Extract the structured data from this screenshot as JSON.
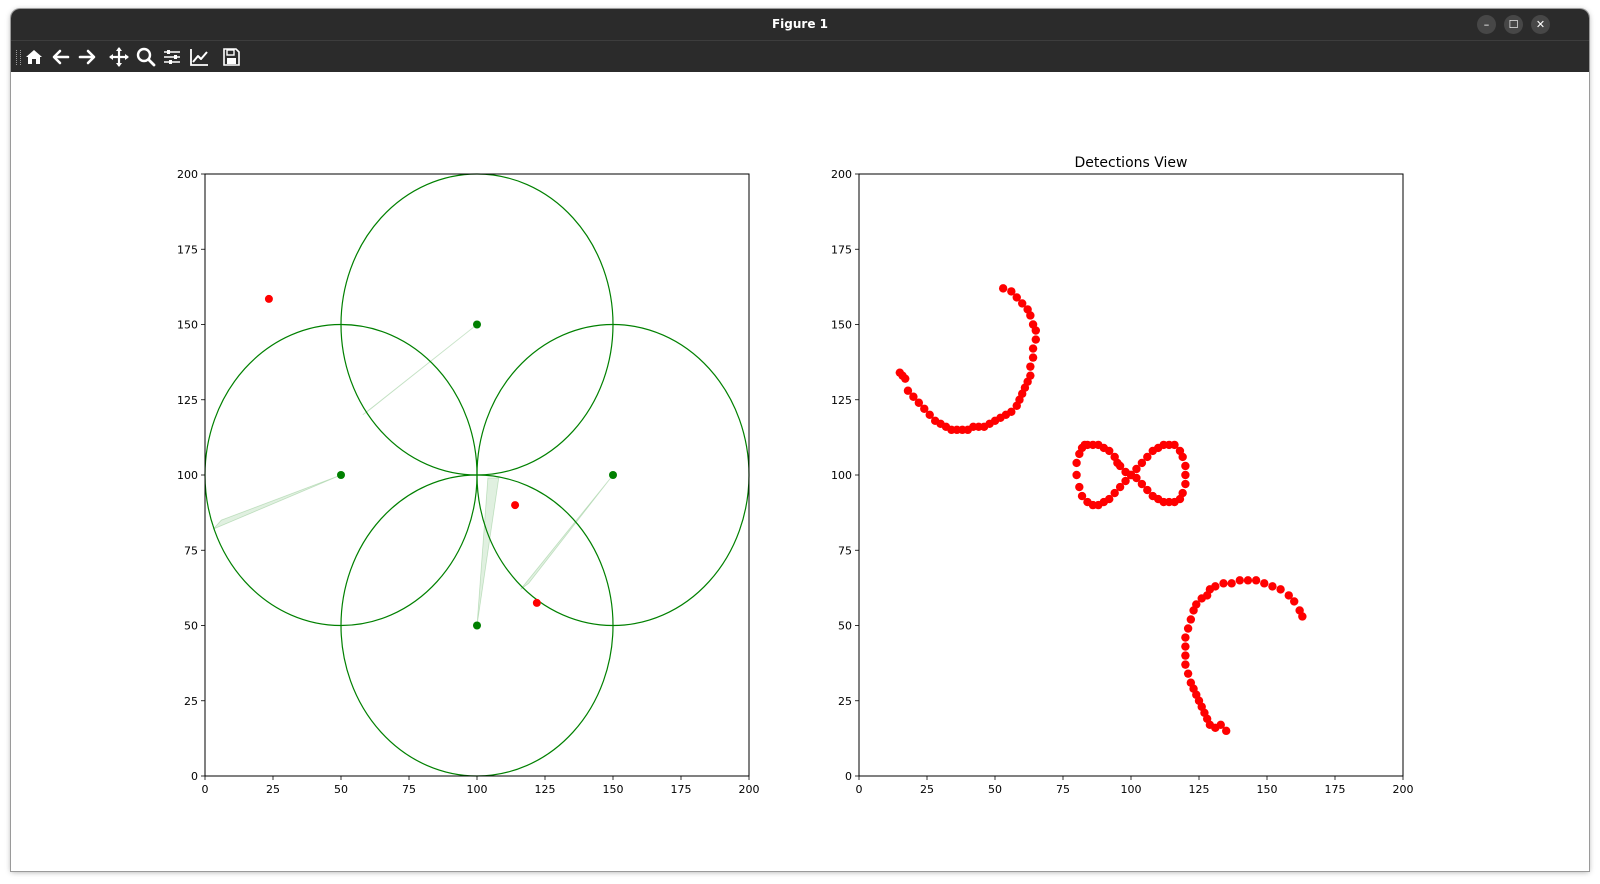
{
  "window": {
    "title": "Figure 1",
    "controls": {
      "minimize": "–",
      "maximize": "☐",
      "close": "✕"
    }
  },
  "toolbar": {
    "buttons": [
      {
        "name": "home-icon",
        "label": "Home"
      },
      {
        "name": "back-icon",
        "label": "Back"
      },
      {
        "name": "forward-icon",
        "label": "Forward"
      },
      {
        "name": "pan-icon",
        "label": "Pan"
      },
      {
        "name": "zoom-icon",
        "label": "Zoom"
      },
      {
        "name": "subplots-icon",
        "label": "Subplots"
      },
      {
        "name": "customize-icon",
        "label": "Customize"
      },
      {
        "name": "save-icon",
        "label": "Save"
      }
    ]
  },
  "chart_data": [
    {
      "type": "scatter",
      "title": "",
      "xlabel": "",
      "ylabel": "",
      "xlim": [
        0,
        200
      ],
      "ylim": [
        0,
        200
      ],
      "xticks": [
        0,
        25,
        50,
        75,
        100,
        125,
        150,
        175,
        200
      ],
      "yticks": [
        0,
        25,
        50,
        75,
        100,
        125,
        150,
        175,
        200
      ],
      "grid": false,
      "color_sensor": "#008000",
      "color_target": "#ff0000",
      "sensors": [
        {
          "x": 50,
          "y": 100,
          "range": 50,
          "beam_to": [
            [
              3,
              82
            ],
            [
              6,
              85
            ]
          ]
        },
        {
          "x": 100,
          "y": 150,
          "range": 50,
          "beam_to": [
            [
              58,
              120
            ],
            [
              61,
              122
            ]
          ]
        },
        {
          "x": 150,
          "y": 100,
          "range": 50,
          "beam_to": [
            [
              116,
              62
            ],
            [
              119,
              64
            ]
          ]
        },
        {
          "x": 100,
          "y": 50,
          "range": 50,
          "beam_to": [
            [
              104,
              99
            ],
            [
              108,
              99
            ]
          ]
        }
      ],
      "targets": [
        {
          "x": 23.5,
          "y": 158.5
        },
        {
          "x": 114,
          "y": 90
        },
        {
          "x": 122,
          "y": 57.5
        }
      ]
    },
    {
      "type": "scatter",
      "title": "Detections View",
      "xlabel": "",
      "ylabel": "",
      "xlim": [
        0,
        200
      ],
      "ylim": [
        0,
        200
      ],
      "xticks": [
        0,
        25,
        50,
        75,
        100,
        125,
        150,
        175,
        200
      ],
      "yticks": [
        0,
        25,
        50,
        75,
        100,
        125,
        150,
        175,
        200
      ],
      "grid": false,
      "color": "#ff0000",
      "series": [
        {
          "x": [
            15,
            16,
            17,
            18,
            20,
            22,
            24,
            26,
            28,
            30,
            32,
            34,
            36,
            38,
            40,
            42,
            44,
            46,
            48,
            50,
            52,
            54,
            56,
            58,
            59,
            60,
            61,
            62,
            63,
            63,
            64,
            64,
            65,
            65,
            64,
            63,
            62,
            60,
            58,
            56,
            53
          ],
          "y": [
            134,
            133,
            132,
            128,
            126,
            124,
            122,
            120,
            118,
            117,
            116,
            115,
            115,
            115,
            115,
            116,
            116,
            116,
            117,
            118,
            119,
            120,
            121,
            123,
            125,
            127,
            129,
            131,
            133,
            136,
            139,
            142,
            145,
            148,
            150,
            153,
            155,
            157,
            159,
            161,
            162
          ]
        },
        {
          "x": [
            80,
            80,
            81,
            82,
            83,
            84,
            86,
            88,
            90,
            92,
            94,
            95,
            96,
            98,
            100,
            102,
            104,
            106,
            108,
            110,
            112,
            114,
            116,
            118,
            119,
            120,
            120,
            120,
            119,
            118,
            116,
            114,
            112,
            110,
            108,
            106,
            104,
            102,
            100,
            98,
            96,
            94,
            92,
            90,
            88,
            86,
            84,
            82,
            81
          ],
          "y": [
            100,
            104,
            107,
            109,
            110,
            110,
            110,
            110,
            109,
            108,
            106,
            104,
            103,
            101,
            100,
            99,
            97,
            95,
            93,
            92,
            91,
            91,
            91,
            92,
            94,
            97,
            100,
            103,
            106,
            108,
            110,
            110,
            110,
            109,
            108,
            106,
            104,
            102,
            100,
            98,
            96,
            94,
            92,
            91,
            90,
            90,
            91,
            93,
            96
          ]
        },
        {
          "x": [
            163,
            162,
            160,
            158,
            155,
            152,
            149,
            146,
            143,
            140,
            137,
            134,
            131,
            129,
            128,
            126,
            124,
            123,
            122,
            121,
            120,
            120,
            120,
            120,
            121,
            122,
            123,
            124,
            125,
            126,
            127,
            128,
            129,
            131,
            133,
            135
          ],
          "y": [
            53,
            55,
            58,
            60,
            62,
            63,
            64,
            65,
            65,
            65,
            64,
            64,
            63,
            62,
            60,
            59,
            57,
            55,
            52,
            49,
            46,
            43,
            40,
            37,
            34,
            31,
            29,
            27,
            25,
            23,
            21,
            19,
            17,
            16,
            17,
            15
          ]
        }
      ]
    }
  ]
}
